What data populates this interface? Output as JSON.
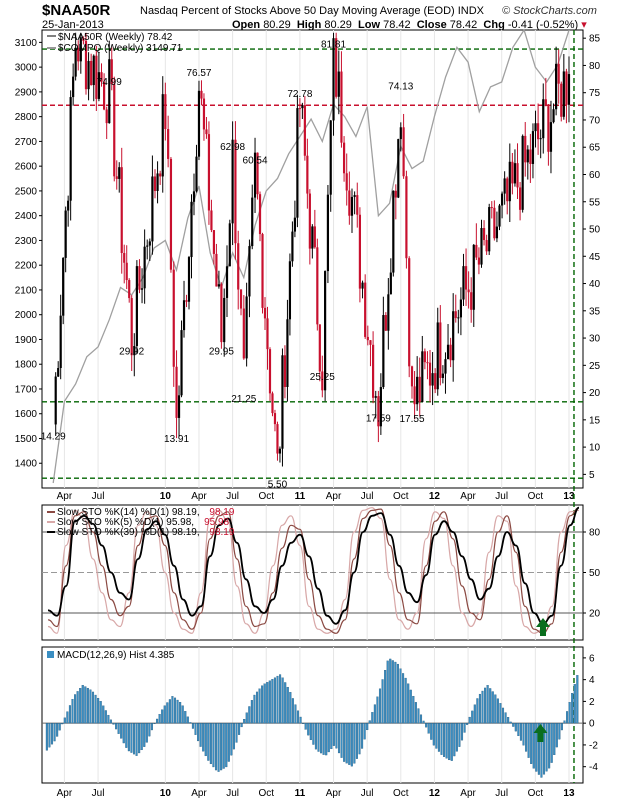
{
  "header": {
    "symbol": "$NAA50R",
    "description": "Nasdaq Percent of Stocks Above 50 Day Moving Average (EOD)  INDX",
    "date": "25-Jan-2013",
    "open_label": "Open",
    "open": "80.29",
    "high_label": "High",
    "high": "80.29",
    "low_label": "Low",
    "low": "78.42",
    "close_label": "Close",
    "close": "78.42",
    "chg_label": "Chg",
    "chg": "-0.41 (-0.52%)",
    "brand": "© StockCharts.com",
    "down_color": "#c8102e"
  },
  "chart_data": [
    {
      "type": "line",
      "panel": "price",
      "legend": [
        "$NAA50R (Weekly) 78.42",
        "$COMPQ (Weekly) 3149.71"
      ],
      "left_axis": {
        "label": "",
        "range": [
          1300,
          3150
        ],
        "ticks": [
          1400,
          1500,
          1600,
          1700,
          1800,
          1900,
          2000,
          2100,
          2200,
          2300,
          2400,
          2500,
          2600,
          2700,
          2800,
          2900,
          3000,
          3100
        ]
      },
      "right_axis": {
        "label": "",
        "range": [
          2.5,
          86.5
        ],
        "ticks": [
          5,
          10,
          15,
          20,
          25,
          30,
          35,
          40,
          45,
          50,
          55,
          60,
          65,
          70,
          75,
          80,
          85
        ]
      },
      "x_ticks": [
        "Apr",
        "Jul",
        "10",
        "Apr",
        "Jul",
        "Oct",
        "11",
        "Apr",
        "Jul",
        "Oct",
        "12",
        "Apr",
        "Jul",
        "Oct",
        "13"
      ],
      "x_tick_dates": [
        "2009-04",
        "2009-07",
        "2010-01",
        "2010-04",
        "2010-07",
        "2010-10",
        "2011-01",
        "2011-04",
        "2011-07",
        "2011-10",
        "2012-01",
        "2012-04",
        "2012-07",
        "2012-10",
        "2013-01"
      ],
      "horizontal_lines": [
        {
          "value": 83.0,
          "color": "#006400",
          "style": "dashed"
        },
        {
          "value": 72.7,
          "color": "#c8102e",
          "style": "dashed"
        },
        {
          "value": 18.3,
          "color": "#006400",
          "style": "dashed"
        },
        {
          "value": 4.3,
          "color": "#006400",
          "style": "dashed"
        }
      ],
      "series": [
        {
          "name": "$NAA50R (Weekly)",
          "style": "weekly-candlestick",
          "up_color": "#000000",
          "down_color": "#c8102e",
          "pivots": [
            {
              "date": "2009-03",
              "value": 14.29
            },
            {
              "date": "2009-05",
              "value": 84.5
            },
            {
              "date": "2009-08",
              "value": 74.99
            },
            {
              "date": "2009-10",
              "value": 29.92
            },
            {
              "date": "2010-01",
              "value": 72.0
            },
            {
              "date": "2010-02",
              "value": 13.91
            },
            {
              "date": "2010-04",
              "value": 76.57
            },
            {
              "date": "2010-06",
              "value": 29.95
            },
            {
              "date": "2010-07",
              "value": 62.98
            },
            {
              "date": "2010-08",
              "value": 21.25
            },
            {
              "date": "2010-09",
              "value": 60.54
            },
            {
              "date": "2010-11",
              "value": 5.5
            },
            {
              "date": "2011-01",
              "value": 72.78
            },
            {
              "date": "2011-03",
              "value": 25.25
            },
            {
              "date": "2011-04",
              "value": 81.81
            },
            {
              "date": "2011-08",
              "value": 17.59
            },
            {
              "date": "2011-10",
              "value": 74.13
            },
            {
              "date": "2011-11",
              "value": 17.55
            },
            {
              "date": "2013-01",
              "value": 78.42
            }
          ]
        },
        {
          "name": "$COMPQ (Weekly)",
          "color": "#a0a0a0",
          "points": [
            {
              "date": "2009-03",
              "value": 1320
            },
            {
              "date": "2009-04",
              "value": 1650
            },
            {
              "date": "2009-05",
              "value": 1720
            },
            {
              "date": "2009-06",
              "value": 1830
            },
            {
              "date": "2009-07",
              "value": 1870
            },
            {
              "date": "2009-08",
              "value": 1980
            },
            {
              "date": "2009-09",
              "value": 2110
            },
            {
              "date": "2009-10",
              "value": 2080
            },
            {
              "date": "2009-11",
              "value": 2150
            },
            {
              "date": "2009-12",
              "value": 2270
            },
            {
              "date": "2010-01",
              "value": 2300
            },
            {
              "date": "2010-02",
              "value": 2180
            },
            {
              "date": "2010-03",
              "value": 2390
            },
            {
              "date": "2010-04",
              "value": 2520
            },
            {
              "date": "2010-05",
              "value": 2250
            },
            {
              "date": "2010-06",
              "value": 2110
            },
            {
              "date": "2010-07",
              "value": 2250
            },
            {
              "date": "2010-08",
              "value": 2150
            },
            {
              "date": "2010-09",
              "value": 2360
            },
            {
              "date": "2010-10",
              "value": 2500
            },
            {
              "date": "2010-11",
              "value": 2550
            },
            {
              "date": "2010-12",
              "value": 2650
            },
            {
              "date": "2011-01",
              "value": 2720
            },
            {
              "date": "2011-02",
              "value": 2790
            },
            {
              "date": "2011-03",
              "value": 2700
            },
            {
              "date": "2011-04",
              "value": 2850
            },
            {
              "date": "2011-05",
              "value": 2800
            },
            {
              "date": "2011-06",
              "value": 2720
            },
            {
              "date": "2011-07",
              "value": 2840
            },
            {
              "date": "2011-08",
              "value": 2400
            },
            {
              "date": "2011-09",
              "value": 2450
            },
            {
              "date": "2011-10",
              "value": 2680
            },
            {
              "date": "2011-11",
              "value": 2590
            },
            {
              "date": "2011-12",
              "value": 2620
            },
            {
              "date": "2012-01",
              "value": 2800
            },
            {
              "date": "2012-02",
              "value": 2960
            },
            {
              "date": "2012-03",
              "value": 3080
            },
            {
              "date": "2012-04",
              "value": 3020
            },
            {
              "date": "2012-05",
              "value": 2820
            },
            {
              "date": "2012-06",
              "value": 2920
            },
            {
              "date": "2012-07",
              "value": 2940
            },
            {
              "date": "2012-08",
              "value": 3080
            },
            {
              "date": "2012-09",
              "value": 3150
            },
            {
              "date": "2012-10",
              "value": 3000
            },
            {
              "date": "2012-11",
              "value": 2940
            },
            {
              "date": "2012-12",
              "value": 3010
            },
            {
              "date": "2013-01",
              "value": 3149.71
            }
          ]
        }
      ],
      "annotations": [
        {
          "text": "14.29",
          "date": "2009-03",
          "value": 14.29,
          "pos": "below"
        },
        {
          "text": "74.99",
          "date": "2009-08",
          "value": 74.99,
          "pos": "above"
        },
        {
          "text": "29.92",
          "date": "2009-10",
          "value": 29.92,
          "pos": "below"
        },
        {
          "text": "13.91",
          "date": "2010-02",
          "value": 13.91,
          "pos": "below"
        },
        {
          "text": "76.57",
          "date": "2010-04",
          "value": 76.57,
          "pos": "above"
        },
        {
          "text": "29.95",
          "date": "2010-06",
          "value": 29.95,
          "pos": "below"
        },
        {
          "text": "62.98",
          "date": "2010-07",
          "value": 62.98,
          "pos": "above"
        },
        {
          "text": "21.25",
          "date": "2010-08",
          "value": 21.25,
          "pos": "below"
        },
        {
          "text": "60.54",
          "date": "2010-09",
          "value": 60.54,
          "pos": "above"
        },
        {
          "text": "5.50",
          "date": "2010-11",
          "value": 5.5,
          "pos": "below"
        },
        {
          "text": "72.78",
          "date": "2011-01",
          "value": 72.78,
          "pos": "above"
        },
        {
          "text": "25.25",
          "date": "2011-03",
          "value": 25.25,
          "pos": "below"
        },
        {
          "text": "81.81",
          "date": "2011-04",
          "value": 81.81,
          "pos": "above"
        },
        {
          "text": "17.59",
          "date": "2011-08",
          "value": 17.59,
          "pos": "below"
        },
        {
          "text": "74.13",
          "date": "2011-10",
          "value": 74.13,
          "pos": "above"
        },
        {
          "text": "17.55",
          "date": "2011-11",
          "value": 17.55,
          "pos": "below"
        }
      ]
    },
    {
      "type": "line",
      "panel": "stochastic",
      "legend": [
        {
          "label": "Slow STO %K(14) %D(1) 98.19,",
          "value": "98.19",
          "value_color": "#c8102e"
        },
        {
          "label": "Slow STO %K(5) %D(1) 95.98,",
          "value": "95.98",
          "value_color": "#c8102e"
        },
        {
          "label": "Slow STO %K(39) %D(1) 98.19,",
          "value": "98.19",
          "value_color": "#c8102e"
        }
      ],
      "right_axis": {
        "range": [
          0,
          100
        ],
        "ticks": [
          20,
          50,
          80
        ]
      },
      "reference_lines": [
        20,
        50,
        80
      ],
      "series": [
        {
          "name": "Slow STO %K(39) %D(1)",
          "color": "#000000",
          "values": [
            22,
            18,
            40,
            88,
            92,
            86,
            70,
            50,
            35,
            30,
            60,
            82,
            88,
            78,
            55,
            30,
            18,
            25,
            62,
            85,
            90,
            72,
            45,
            25,
            20,
            30,
            55,
            72,
            78,
            62,
            38,
            18,
            12,
            22,
            50,
            80,
            92,
            94,
            78,
            55,
            35,
            28,
            48,
            78,
            88,
            80,
            62,
            45,
            30,
            38,
            62,
            80,
            70,
            42,
            20,
            12,
            18,
            55,
            85,
            98
          ]
        },
        {
          "name": "Slow STO %K(14) %D(1)",
          "color": "#8b4a43",
          "values": [
            15,
            10,
            55,
            92,
            95,
            80,
            55,
            30,
            18,
            25,
            70,
            90,
            92,
            70,
            35,
            15,
            8,
            20,
            75,
            92,
            95,
            60,
            25,
            10,
            12,
            35,
            68,
            85,
            82,
            45,
            18,
            8,
            5,
            15,
            60,
            90,
            96,
            97,
            70,
            35,
            15,
            12,
            55,
            88,
            95,
            75,
            40,
            20,
            15,
            45,
            80,
            92,
            65,
            25,
            8,
            5,
            12,
            65,
            92,
            98
          ]
        },
        {
          "name": "Slow STO %K(5) %D(1)",
          "color": "#d8a8a8",
          "values": [
            10,
            5,
            70,
            96,
            90,
            60,
            35,
            15,
            10,
            35,
            85,
            95,
            85,
            50,
            20,
            8,
            5,
            35,
            90,
            96,
            88,
            40,
            12,
            5,
            20,
            55,
            85,
            92,
            70,
            25,
            8,
            5,
            8,
            30,
            80,
            96,
            98,
            90,
            45,
            15,
            8,
            20,
            75,
            95,
            90,
            55,
            20,
            10,
            20,
            65,
            92,
            88,
            40,
            10,
            5,
            8,
            25,
            80,
            95,
            96
          ]
        }
      ],
      "markers": [
        {
          "type": "up-arrow",
          "color": "#0a6e1e",
          "index": 55
        }
      ]
    },
    {
      "type": "bar",
      "panel": "macd",
      "legend": "MACD(12,26,9) Hist 4.385",
      "right_axis": {
        "range": [
          -5.5,
          7
        ],
        "ticks": [
          -4,
          -2,
          0,
          2,
          4,
          6
        ]
      },
      "bar_color": "#3a8ec2",
      "series": [
        {
          "name": "MACD(12,26,9) Hist",
          "values": [
            -2.5,
            -1.5,
            0.5,
            2.5,
            3.5,
            3.0,
            2.0,
            0.5,
            -1.0,
            -2.5,
            -3.0,
            -2.0,
            0.0,
            1.5,
            2.5,
            1.8,
            0.0,
            -2.0,
            -3.5,
            -4.5,
            -4.0,
            -2.0,
            0.5,
            2.5,
            3.5,
            4.0,
            4.5,
            3.0,
            1.0,
            -1.0,
            -2.5,
            -3.0,
            -2.0,
            -3.5,
            -4.0,
            -2.5,
            0.5,
            3.0,
            6.0,
            5.5,
            4.0,
            2.0,
            0.0,
            -2.0,
            -3.0,
            -3.5,
            -2.0,
            0.5,
            2.5,
            3.5,
            2.5,
            1.0,
            -0.5,
            -2.0,
            -4.0,
            -5.0,
            -4.0,
            -1.5,
            1.5,
            4.4
          ]
        }
      ],
      "markers": [
        {
          "type": "up-arrow",
          "color": "#0a6e1e",
          "index": 55
        }
      ],
      "vertical_lines": [
        {
          "index": 58.5,
          "color": "#006400",
          "style": "dashed"
        }
      ]
    }
  ]
}
